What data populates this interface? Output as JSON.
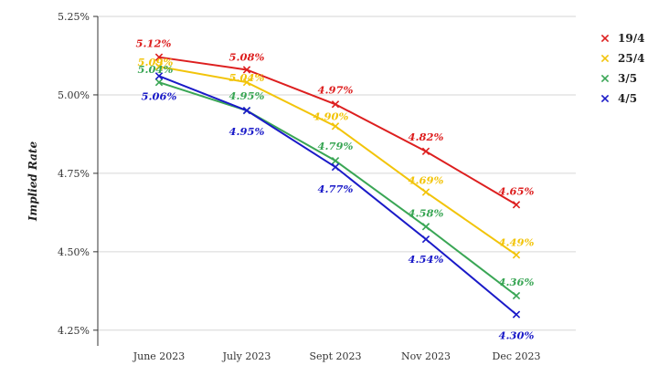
{
  "chart_data": {
    "type": "line",
    "title": "",
    "xlabel": "",
    "ylabel": "Implied Rate",
    "categories": [
      "June 2023",
      "July 2023",
      "Sept 2023",
      "Nov 2023",
      "Dec 2023"
    ],
    "ylim": [
      4.2,
      5.25
    ],
    "yticks": [
      4.25,
      4.5,
      4.75,
      5.0,
      5.25
    ],
    "ytick_labels": [
      "4.25%",
      "4.50%",
      "4.75%",
      "5.00%",
      "5.25%"
    ],
    "grid": "horizontal",
    "legend_position": "top-right",
    "series": [
      {
        "name": "19/4",
        "color": "#dd1f1f",
        "values": [
          5.12,
          5.08,
          4.97,
          4.82,
          4.65
        ],
        "labels": [
          "5.12%",
          "5.08%",
          "4.97%",
          "4.82%",
          "4.65%"
        ]
      },
      {
        "name": "25/4",
        "color": "#f2c40a",
        "values": [
          5.09,
          5.04,
          4.9,
          4.69,
          4.49
        ],
        "labels": [
          "5.09%",
          "5.04%",
          "4.90%",
          "4.69%",
          "4.49%"
        ]
      },
      {
        "name": "3/5",
        "color": "#3aa655",
        "values": [
          5.04,
          4.95,
          4.79,
          4.58,
          4.36
        ],
        "labels": [
          "5.04%",
          "4.95%",
          "4.79%",
          "4.58%",
          "4.36%"
        ]
      },
      {
        "name": "4/5",
        "color": "#1a1ac8",
        "values": [
          5.06,
          4.95,
          4.77,
          4.54,
          4.3
        ],
        "labels": [
          "5.06%",
          "4.95%",
          "4.77%",
          "4.54%",
          "4.30%"
        ]
      }
    ]
  }
}
